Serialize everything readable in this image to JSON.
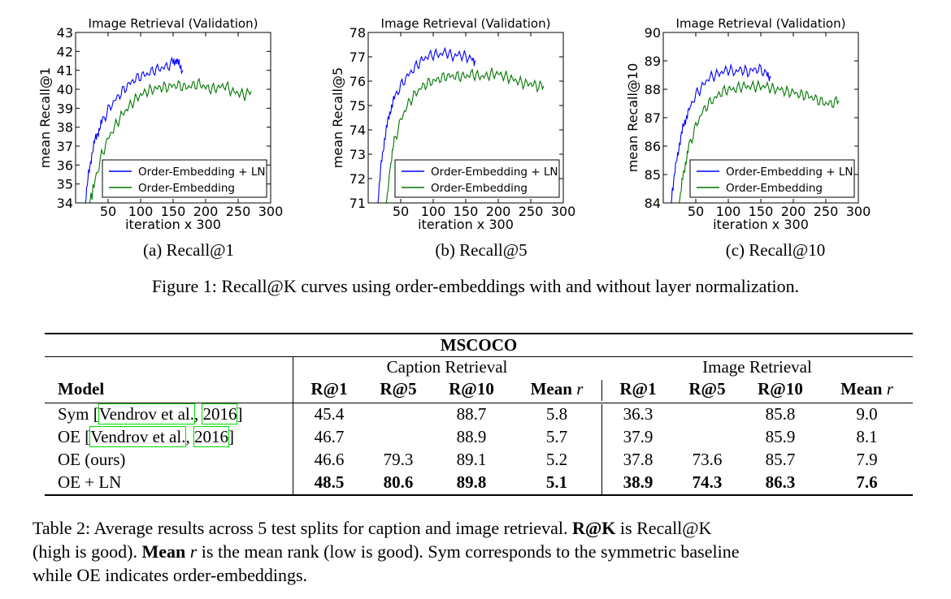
{
  "chart_data": [
    {
      "type": "line",
      "title": "Image Retrieval (Validation)",
      "xlabel": "iteration x 300",
      "ylabel": "mean Recall@1",
      "xlim": [
        0,
        300
      ],
      "ylim": [
        34,
        43
      ],
      "xticks": [
        50,
        100,
        150,
        200,
        250,
        300
      ],
      "yticks": [
        34,
        35,
        36,
        37,
        38,
        39,
        40,
        41,
        42,
        43
      ],
      "legend_position": "lower-right",
      "series": [
        {
          "name": "Order-Embedding + LN",
          "color": "#0000ff",
          "x": [
            15,
            20,
            25,
            30,
            35,
            40,
            50,
            60,
            70,
            80,
            90,
            100,
            110,
            120,
            130,
            140,
            150,
            155,
            160,
            165
          ],
          "y": [
            34.0,
            35.5,
            36.6,
            37.3,
            37.8,
            38.2,
            38.9,
            39.4,
            39.8,
            40.2,
            40.5,
            40.7,
            40.8,
            41.0,
            41.1,
            41.2,
            41.4,
            41.6,
            41.2,
            41.0
          ]
        },
        {
          "name": "Order-Embedding",
          "color": "#007700",
          "x": [
            22,
            30,
            40,
            50,
            60,
            70,
            80,
            90,
            100,
            110,
            120,
            130,
            140,
            150,
            160,
            170,
            180,
            190,
            200,
            210,
            220,
            230,
            240,
            250,
            260,
            270
          ],
          "y": [
            34.0,
            35.2,
            36.5,
            37.4,
            38.0,
            38.6,
            39.0,
            39.4,
            39.7,
            39.9,
            40.0,
            40.1,
            40.1,
            40.2,
            40.2,
            40.1,
            40.2,
            40.3,
            40.1,
            40.0,
            40.1,
            40.2,
            39.9,
            39.8,
            39.7,
            39.9
          ]
        }
      ]
    },
    {
      "type": "line",
      "title": "Image Retrieval (Validation)",
      "xlabel": "iteration x 300",
      "ylabel": "mean Recall@5",
      "xlim": [
        0,
        300
      ],
      "ylim": [
        71,
        78
      ],
      "xticks": [
        50,
        100,
        150,
        200,
        250,
        300
      ],
      "yticks": [
        71,
        72,
        73,
        74,
        75,
        76,
        77,
        78
      ],
      "legend_position": "lower-right",
      "series": [
        {
          "name": "Order-Embedding + LN",
          "color": "#0000ff",
          "x": [
            15,
            20,
            25,
            30,
            35,
            40,
            50,
            60,
            70,
            80,
            90,
            100,
            110,
            120,
            130,
            140,
            150,
            160,
            165
          ],
          "y": [
            71.0,
            72.6,
            73.6,
            74.3,
            74.9,
            75.3,
            75.8,
            76.2,
            76.5,
            76.8,
            77.0,
            77.1,
            77.1,
            77.2,
            77.0,
            77.1,
            77.0,
            76.9,
            76.8
          ]
        },
        {
          "name": "Order-Embedding",
          "color": "#007700",
          "x": [
            28,
            35,
            40,
            50,
            60,
            70,
            80,
            90,
            100,
            110,
            120,
            130,
            140,
            150,
            160,
            170,
            180,
            190,
            200,
            210,
            220,
            230,
            240,
            250,
            260,
            270
          ],
          "y": [
            71.0,
            72.7,
            73.5,
            74.4,
            75.0,
            75.4,
            75.7,
            75.9,
            76.0,
            76.1,
            76.2,
            76.2,
            76.2,
            76.2,
            76.3,
            76.2,
            76.2,
            76.3,
            76.3,
            76.2,
            76.1,
            76.0,
            75.9,
            75.9,
            75.8,
            75.8
          ]
        }
      ]
    },
    {
      "type": "line",
      "title": "Image Retrieval (Validation)",
      "xlabel": "iteration x 300",
      "ylabel": "mean Recall@10",
      "xlim": [
        0,
        300
      ],
      "ylim": [
        84,
        90
      ],
      "xticks": [
        50,
        100,
        150,
        200,
        250,
        300
      ],
      "yticks": [
        84,
        85,
        86,
        87,
        88,
        89,
        90
      ],
      "legend_position": "lower-right",
      "series": [
        {
          "name": "Order-Embedding + LN",
          "color": "#0000ff",
          "x": [
            12,
            15,
            20,
            25,
            30,
            35,
            40,
            50,
            60,
            70,
            80,
            90,
            100,
            110,
            120,
            130,
            140,
            150,
            160,
            165
          ],
          "y": [
            84.0,
            84.6,
            85.4,
            86.1,
            86.6,
            87.0,
            87.3,
            87.8,
            88.1,
            88.4,
            88.5,
            88.6,
            88.7,
            88.6,
            88.7,
            88.6,
            88.7,
            88.7,
            88.5,
            88.4
          ]
        },
        {
          "name": "Order-Embedding",
          "color": "#007700",
          "x": [
            24,
            30,
            35,
            40,
            50,
            60,
            70,
            80,
            90,
            100,
            110,
            120,
            130,
            140,
            150,
            160,
            170,
            180,
            190,
            200,
            210,
            220,
            230,
            240,
            250,
            260,
            270
          ],
          "y": [
            84.0,
            84.9,
            85.5,
            86.0,
            86.7,
            87.2,
            87.5,
            87.7,
            87.9,
            88.0,
            88.0,
            88.1,
            88.1,
            88.1,
            88.1,
            88.1,
            88.0,
            88.0,
            87.9,
            87.9,
            87.8,
            87.8,
            87.7,
            87.6,
            87.5,
            87.5,
            87.6
          ]
        }
      ]
    }
  ],
  "subcaptions": [
    "(a) Recall@1",
    "(b) Recall@5",
    "(c) Recall@10"
  ],
  "figure_caption": "Figure 1: Recall@K curves using order-embeddings with and without layer normalization.",
  "table": {
    "title": "MSCOCO",
    "group_caption": "Caption Retrieval",
    "group_image": "Image Retrieval",
    "model_header": "Model",
    "metric_headers": [
      "R@1",
      "R@5",
      "R@10",
      "Mean"
    ],
    "mean_suffix": "r",
    "rows": [
      {
        "model": "Sym",
        "cite_author": "Vendrov et al.",
        "cite_year": "2016",
        "values": [
          "45.4",
          "",
          "88.7",
          "5.8",
          "36.3",
          "",
          "85.8",
          "9.0"
        ]
      },
      {
        "model": "OE",
        "cite_author": "Vendrov et al.",
        "cite_year": "2016",
        "values": [
          "46.7",
          "",
          "88.9",
          "5.7",
          "37.9",
          "",
          "85.9",
          "8.1"
        ]
      },
      {
        "model": "OE (ours)",
        "values": [
          "46.6",
          "79.3",
          "89.1",
          "5.2",
          "37.8",
          "73.6",
          "85.7",
          "7.9"
        ]
      },
      {
        "model": "OE + LN",
        "values": [
          "48.5",
          "80.6",
          "89.8",
          "5.1",
          "38.9",
          "74.3",
          "86.3",
          "7.6"
        ]
      }
    ]
  },
  "table_caption": {
    "line1_a": "Table 2:  Average results across 5 test splits for caption and image retrieval.",
    "line1_b": "R@K",
    "line1_c": " is Recall@K",
    "line2_a": "(high is good). ",
    "line2_b": "Mean",
    "line2_c": "r",
    "line2_d": " is the mean rank (low is good). Sym corresponds to the symmetric baseline",
    "line3": "while OE indicates order-embeddings."
  }
}
